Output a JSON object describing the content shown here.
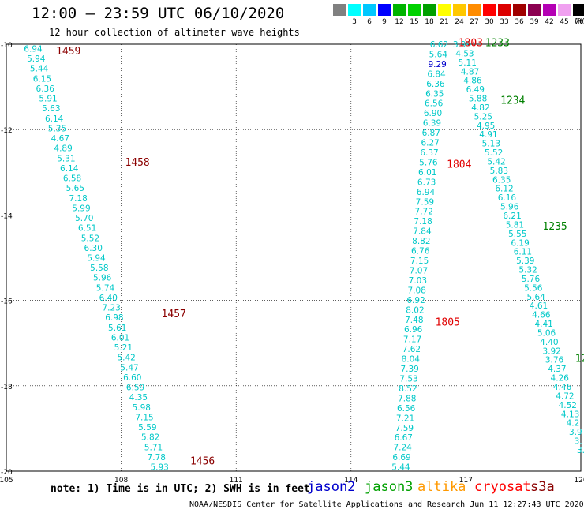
{
  "header": {
    "title": "12:00 – 23:59 UTC 06/10/2020",
    "subtitle": "12 hour collection of altimeter wave heights"
  },
  "legend": {
    "unit": "(ft)",
    "items": [
      {
        "label": "",
        "color": "#808080"
      },
      {
        "label": "3",
        "color": "#00ffff"
      },
      {
        "label": "6",
        "color": "#00c8ff"
      },
      {
        "label": "9",
        "color": "#0000ff"
      },
      {
        "label": "12",
        "color": "#00b400"
      },
      {
        "label": "15",
        "color": "#00d200"
      },
      {
        "label": "18",
        "color": "#00a000"
      },
      {
        "label": "21",
        "color": "#ffff00"
      },
      {
        "label": "24",
        "color": "#ffc800"
      },
      {
        "label": "27",
        "color": "#ff8c00"
      },
      {
        "label": "30",
        "color": "#ff0000"
      },
      {
        "label": "33",
        "color": "#dc0000"
      },
      {
        "label": "36",
        "color": "#a00000"
      },
      {
        "label": "39",
        "color": "#8b0050"
      },
      {
        "label": "42",
        "color": "#b400b4"
      },
      {
        "label": "45",
        "color": "#f0a0f0"
      },
      {
        "label": "70",
        "color": "#000000"
      }
    ]
  },
  "axes": {
    "lat_labels": [
      "-10",
      "-12",
      "-14",
      "-16",
      "-18",
      "-20"
    ],
    "lat_values": [
      -10,
      -12,
      -14,
      -16,
      -18,
      -20
    ],
    "lon_labels": [
      "105",
      "108",
      "111",
      "114",
      "117",
      "120"
    ],
    "lon_values": [
      105,
      108,
      111,
      114,
      117,
      120
    ]
  },
  "tracks": [
    {
      "name": "track-a",
      "color": "#00c8c8",
      "lon_start": 105.7,
      "lat_start": -10.1,
      "lon_end": 109.0,
      "lat_end": -19.9,
      "values": [
        "6.94",
        "5.94",
        "5.44",
        "6.15",
        "6.36",
        "5.91",
        "5.63",
        "6.14",
        "5.35",
        "4.67",
        "4.89",
        "5.31",
        "6.14",
        "6.58",
        "5.65",
        "7.18",
        "5.99",
        "5.70",
        "6.51",
        "5.52",
        "6.30",
        "5.94",
        "5.58",
        "5.96",
        "5.74",
        "6.40",
        "7.23",
        "6.98",
        "5.61",
        "6.01",
        "5.21",
        "5.42",
        "5.47",
        "6.60",
        "6.59",
        "4.35",
        "5.98",
        "7.15",
        "5.59",
        "5.82",
        "5.71",
        "7.78",
        "5.93"
      ]
    },
    {
      "name": "track-b",
      "color": "#00c8c8",
      "lon_start": 116.3,
      "lat_start": -10.0,
      "lon_end": 115.3,
      "lat_end": -19.9,
      "values": [
        "6.62",
        "5.64",
        "9.29",
        "6.84",
        "6.36",
        "6.35",
        "6.56",
        "6.90",
        "6.39",
        "6.87",
        "6.27",
        "6.37",
        "5.76",
        "6.01",
        "6.73",
        "6.94",
        "7.59",
        "7.72",
        "7.18",
        "7.84",
        "8.82",
        "6.76",
        "7.15",
        "7.07",
        "7.03",
        "7.08",
        "6.92",
        "8.02",
        "7.48",
        "6.96",
        "7.17",
        "7.62",
        "8.04",
        "7.39",
        "7.53",
        "8.52",
        "7.88",
        "6.56",
        "7.21",
        "7.59",
        "6.67",
        "7.24",
        "6.69",
        "5.44"
      ]
    },
    {
      "name": "track-c",
      "color": "#00c8c8",
      "lon_start": 116.9,
      "lat_start": -10.0,
      "lon_end": 120.0,
      "lat_end": -19.5,
      "values": [
        "3.99",
        "4.53",
        "5.11",
        "4.87",
        "4.86",
        "6.49",
        "5.88",
        "4.82",
        "5.25",
        "4.95",
        "4.91",
        "5.13",
        "5.52",
        "5.42",
        "5.83",
        "6.35",
        "6.12",
        "6.16",
        "5.96",
        "6.21",
        "5.81",
        "5.55",
        "6.19",
        "6.11",
        "5.39",
        "5.32",
        "5.76",
        "5.56",
        "5.64",
        "4.61",
        "4.66",
        "4.41",
        "5.06",
        "4.40",
        "3.92",
        "3.76",
        "4.37",
        "4.26",
        "4.46",
        "4.72",
        "4.52",
        "4.13",
        "4.2",
        "3.9",
        "3.",
        "3."
      ]
    }
  ],
  "time_labels": [
    {
      "text": "1459",
      "color": "#8b0000",
      "lon": 106.3,
      "lat": -10.15
    },
    {
      "text": "1458",
      "color": "#8b0000",
      "lon": 108.1,
      "lat": -12.75
    },
    {
      "text": "1457",
      "color": "#8b0000",
      "lon": 109.05,
      "lat": -16.3
    },
    {
      "text": "1456",
      "color": "#8b0000",
      "lon": 109.8,
      "lat": -19.75
    },
    {
      "text": "1803",
      "color": "#e00000",
      "lon": 116.8,
      "lat": -9.95
    },
    {
      "text": "1804",
      "color": "#e00000",
      "lon": 116.5,
      "lat": -12.8
    },
    {
      "text": "1805",
      "color": "#e00000",
      "lon": 116.2,
      "lat": -16.5
    },
    {
      "text": "1233",
      "color": "#008000",
      "lon": 117.5,
      "lat": -9.95
    },
    {
      "text": "1234",
      "color": "#008000",
      "lon": 117.9,
      "lat": -11.3
    },
    {
      "text": "1235",
      "color": "#008000",
      "lon": 119.0,
      "lat": -14.25
    },
    {
      "text": "12",
      "color": "#008000",
      "lon": 119.85,
      "lat": -17.35
    }
  ],
  "note": "note: 1) Time is in UTC; 2) SWH is in feet",
  "satellites": [
    {
      "name": "jason2",
      "color": "#0000cc"
    },
    {
      "name": "jason3",
      "color": "#00a000"
    },
    {
      "name": "altika",
      "color": "#ff9900"
    },
    {
      "name": "cryosat",
      "color": "#ff0000"
    },
    {
      "name": "s3a",
      "color": "#8b0000"
    }
  ],
  "credit": "NOAA/NESDIS Center for Satellite Applications and Research   Jun 11 12:27:43 UTC 2020"
}
